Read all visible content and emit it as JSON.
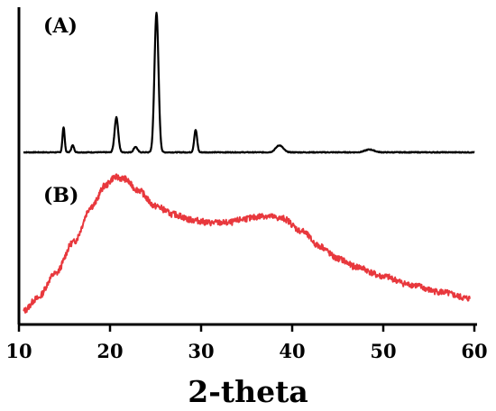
{
  "chart_data": {
    "type": "line",
    "title": "",
    "xlabel": "2-theta",
    "ylabel": "",
    "xlim": [
      10,
      60
    ],
    "x_ticks": [
      10,
      20,
      30,
      40,
      50,
      60
    ],
    "y_ticks_shown": false,
    "grid": false,
    "legend": "none",
    "panel_labels": [
      "(A)",
      "(B)"
    ],
    "series": [
      {
        "label": "(A)",
        "color": "#000000",
        "baseline": 0,
        "peaks": [
          {
            "x": 14.9,
            "height": 0.18,
            "width": 0.12
          },
          {
            "x": 15.9,
            "height": 0.05,
            "width": 0.15
          },
          {
            "x": 20.7,
            "height": 0.25,
            "width": 0.2
          },
          {
            "x": 22.8,
            "height": 0.04,
            "width": 0.2
          },
          {
            "x": 25.1,
            "height": 1.0,
            "width": 0.22
          },
          {
            "x": 29.4,
            "height": 0.16,
            "width": 0.16
          },
          {
            "x": 38.6,
            "height": 0.05,
            "width": 0.4
          },
          {
            "x": 48.5,
            "height": 0.02,
            "width": 0.5
          }
        ]
      },
      {
        "label": "(B)",
        "color": "#e8383d",
        "points": [
          [
            10.5,
            0.0
          ],
          [
            12,
            0.09
          ],
          [
            14,
            0.27
          ],
          [
            16,
            0.5
          ],
          [
            18,
            0.76
          ],
          [
            19.5,
            0.91
          ],
          [
            20.5,
            0.97
          ],
          [
            21.5,
            0.96
          ],
          [
            23,
            0.88
          ],
          [
            25,
            0.76
          ],
          [
            27,
            0.7
          ],
          [
            29,
            0.66
          ],
          [
            31,
            0.64
          ],
          [
            33,
            0.64
          ],
          [
            35,
            0.67
          ],
          [
            37,
            0.69
          ],
          [
            39,
            0.67
          ],
          [
            41,
            0.58
          ],
          [
            43,
            0.47
          ],
          [
            45,
            0.38
          ],
          [
            47,
            0.32
          ],
          [
            50,
            0.25
          ],
          [
            53,
            0.19
          ],
          [
            56,
            0.14
          ],
          [
            59.5,
            0.09
          ]
        ]
      }
    ]
  }
}
